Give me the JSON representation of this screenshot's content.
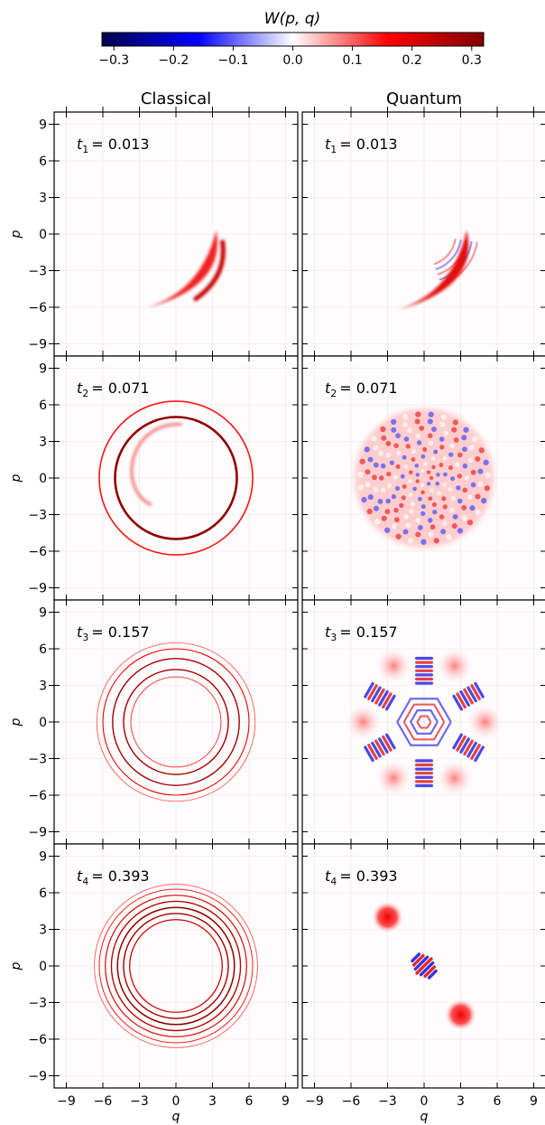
{
  "colorbar": {
    "label": "W(p, q)",
    "ticks": [
      "−0.3",
      "−0.2",
      "−0.1",
      "0.0",
      "0.1",
      "0.2",
      "0.3"
    ],
    "tick_values": [
      -0.3,
      -0.2,
      -0.1,
      0.0,
      0.1,
      0.2,
      0.3
    ],
    "range": [
      -0.32,
      0.32
    ],
    "colormap": "seismic"
  },
  "chart_data": {
    "type": "heatmap",
    "columns": [
      "Classical",
      "Quantum"
    ],
    "xlabel": "q",
    "ylabel": "p",
    "xlim": [
      -10,
      10
    ],
    "ylim": [
      -10,
      10
    ],
    "xticks": [
      -9,
      -6,
      -3,
      0,
      3,
      6,
      9
    ],
    "yticks": [
      -9,
      -6,
      -3,
      0,
      3,
      6,
      9
    ],
    "xtick_labels": [
      "−9",
      "−6",
      "−3",
      "0",
      "3",
      "6",
      "9"
    ],
    "ytick_labels": [
      "−9",
      "−6",
      "−3",
      "0",
      "3",
      "6",
      "9"
    ],
    "grid": true,
    "rows": [
      {
        "time_symbol": "t",
        "index": "1",
        "time_value": "= 0.013",
        "t": 0.013
      },
      {
        "time_symbol": "t",
        "index": "2",
        "time_value": "= 0.071",
        "t": 0.071
      },
      {
        "time_symbol": "t",
        "index": "3",
        "time_value": "= 0.157",
        "t": 0.157
      },
      {
        "time_symbol": "t",
        "index": "4",
        "time_value": "= 0.393",
        "t": 0.393
      }
    ],
    "classical_rings": [
      [],
      [
        {
          "r": 5.0,
          "strength": 1.0
        },
        {
          "r": 6.3,
          "strength": 0.3
        }
      ],
      [
        {
          "r": 4.3,
          "strength": 0.9
        },
        {
          "r": 5.2,
          "strength": 0.9
        },
        {
          "r": 6.0,
          "strength": 0.5
        },
        {
          "r": 3.7,
          "strength": 0.3
        },
        {
          "r": 6.5,
          "strength": 0.2
        }
      ],
      [
        {
          "r": 3.8,
          "strength": 0.7
        },
        {
          "r": 4.3,
          "strength": 0.9
        },
        {
          "r": 4.8,
          "strength": 1.0
        },
        {
          "r": 5.3,
          "strength": 0.8
        },
        {
          "r": 5.8,
          "strength": 0.6
        },
        {
          "r": 6.3,
          "strength": 0.35
        },
        {
          "r": 6.7,
          "strength": 0.2
        }
      ]
    ],
    "quantum_peaks_t4": [
      {
        "q": -3.0,
        "p": 4.0,
        "value": 0.32
      },
      {
        "q": 3.0,
        "p": -4.0,
        "value": 0.32
      }
    ],
    "quantum_peaks_t3": [
      {
        "q": -5.0,
        "p": 0.0
      },
      {
        "q": -2.5,
        "p": 4.6
      },
      {
        "q": 2.5,
        "p": 4.6
      },
      {
        "q": 5.0,
        "p": 0.0
      },
      {
        "q": 2.5,
        "p": -4.6
      },
      {
        "q": -2.5,
        "p": -4.6
      }
    ]
  }
}
